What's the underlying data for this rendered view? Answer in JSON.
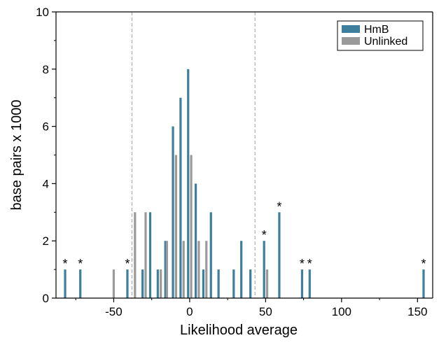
{
  "chart_data": {
    "type": "bar",
    "xlabel": "Likelihood average",
    "ylabel": "base pairs x 1000",
    "xlim": [
      -88,
      160
    ],
    "ylim": [
      0,
      10
    ],
    "xticks": [
      -50,
      0,
      50,
      100,
      150
    ],
    "yticks": [
      0,
      2,
      4,
      6,
      8,
      10
    ],
    "grid": false,
    "legend_position": "top-right",
    "threshold_lines": [
      -38,
      43
    ],
    "series": [
      {
        "name": "HmB",
        "color": "#3d7f9c",
        "points": [
          {
            "x": -82,
            "y": 1
          },
          {
            "x": -72,
            "y": 1
          },
          {
            "x": -41,
            "y": 1
          },
          {
            "x": -31,
            "y": 1
          },
          {
            "x": -26,
            "y": 3
          },
          {
            "x": -21,
            "y": 1
          },
          {
            "x": -16,
            "y": 2
          },
          {
            "x": -11,
            "y": 6
          },
          {
            "x": -6,
            "y": 7
          },
          {
            "x": -1,
            "y": 8
          },
          {
            "x": 4,
            "y": 4
          },
          {
            "x": 9,
            "y": 1
          },
          {
            "x": 14,
            "y": 3
          },
          {
            "x": 19,
            "y": 1
          },
          {
            "x": 29,
            "y": 1
          },
          {
            "x": 34,
            "y": 2
          },
          {
            "x": 40,
            "y": 1
          },
          {
            "x": 49,
            "y": 2
          },
          {
            "x": 59,
            "y": 3
          },
          {
            "x": 74,
            "y": 1
          },
          {
            "x": 79,
            "y": 1
          },
          {
            "x": 154,
            "y": 1
          }
        ]
      },
      {
        "name": "Unlinked",
        "color": "#9a9a9a",
        "points": [
          {
            "x": -50,
            "y": 1
          },
          {
            "x": -36,
            "y": 3
          },
          {
            "x": -29,
            "y": 3
          },
          {
            "x": -19,
            "y": 1
          },
          {
            "x": -15,
            "y": 2
          },
          {
            "x": -9,
            "y": 5
          },
          {
            "x": -4,
            "y": 2
          },
          {
            "x": 1,
            "y": 5
          },
          {
            "x": 6,
            "y": 2
          },
          {
            "x": 11,
            "y": 2
          },
          {
            "x": 51,
            "y": 1
          }
        ]
      }
    ],
    "asterisks": [
      -82,
      -72,
      -41,
      49,
      59,
      74,
      79,
      154
    ],
    "asterisk_label": "*"
  }
}
